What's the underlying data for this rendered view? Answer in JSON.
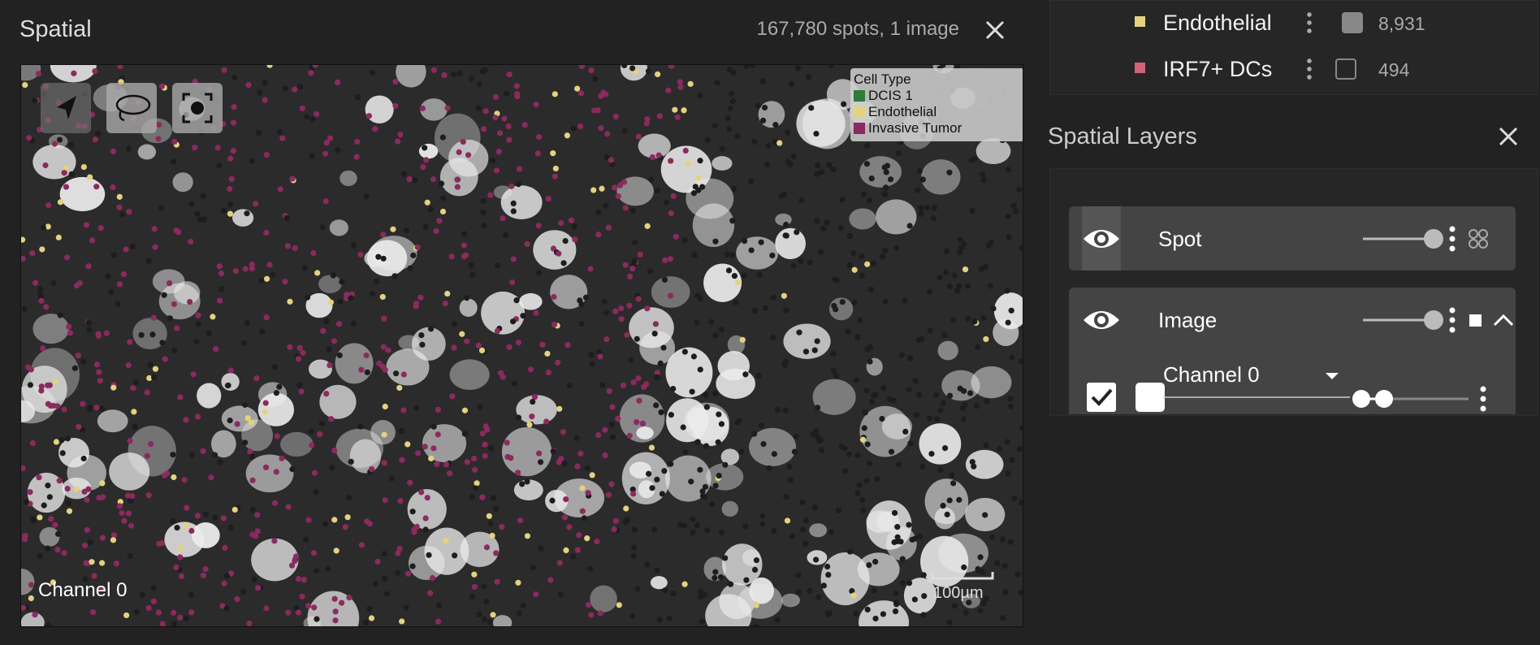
{
  "spatial_panel": {
    "title": "Spatial",
    "summary": "167,780 spots, 1 image",
    "legend": {
      "title": "Cell Type",
      "items": [
        {
          "label": "DCIS 1",
          "color": "#2f7a3a"
        },
        {
          "label": "Endothelial",
          "color": "#e3d27f"
        },
        {
          "label": "Invasive Tumor",
          "color": "#8b2a5f"
        }
      ]
    },
    "channel_label": "Channel 0",
    "scale_bar": "100µm"
  },
  "cell_sets": [
    {
      "name": "Endothelial",
      "color": "#e3d27f",
      "count": "8,931"
    },
    {
      "name": "IRF7+ DCs",
      "color": "#d0637a",
      "count": "494"
    }
  ],
  "layers_panel": {
    "title": "Spatial Layers",
    "layers": [
      {
        "name": "Spot"
      },
      {
        "name": "Image",
        "channels": [
          {
            "name": "Channel 0"
          }
        ]
      }
    ]
  }
}
